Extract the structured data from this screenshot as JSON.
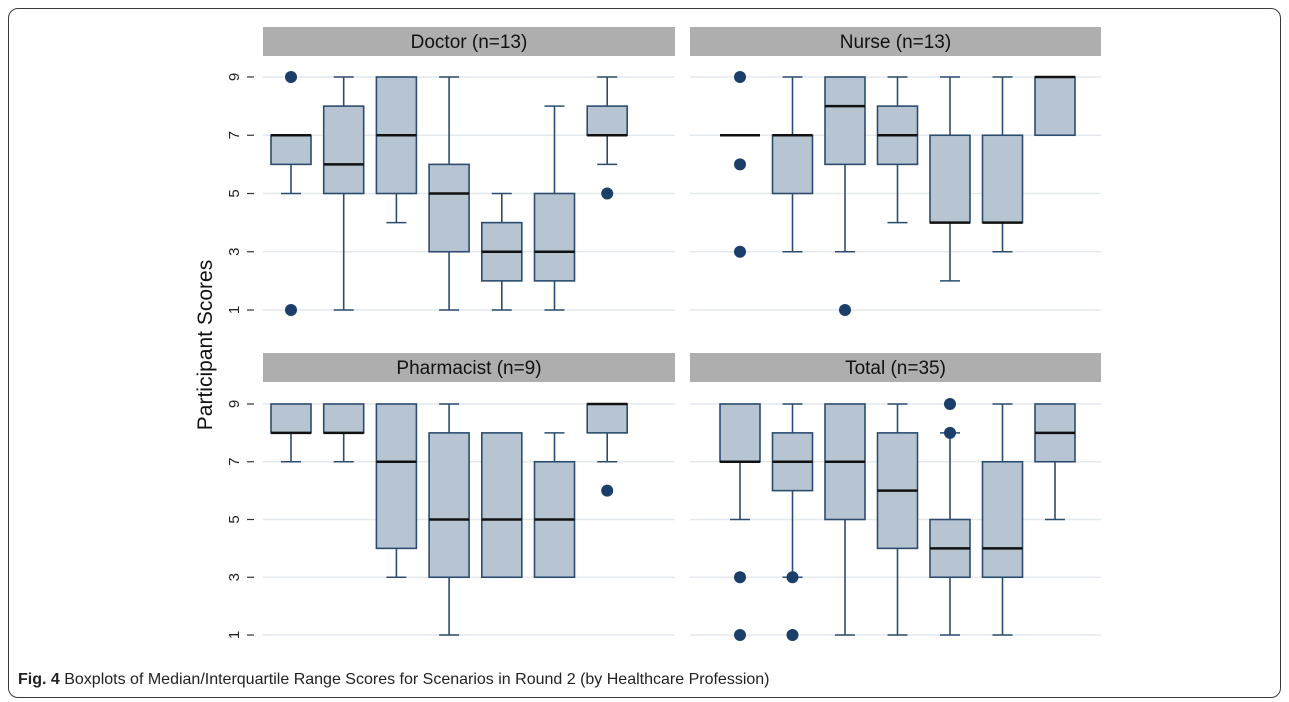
{
  "caption": {
    "label": "Fig. 4",
    "text": "Boxplots of Median/Interquartile Range Scores for Scenarios in Round 2 (by Healthcare Profession)"
  },
  "colors": {
    "box_fill": "#b7c5d3",
    "box_stroke": "#2c4c6f",
    "median": "#111111",
    "outlier": "#1b3f68",
    "strip": "#aeaeae",
    "grid": "#e4e9ee"
  },
  "chart_data": {
    "type": "boxplot",
    "ylabel": "Participant Scores",
    "ylim": [
      1,
      9
    ],
    "yticks": [
      1,
      3,
      5,
      7,
      9
    ],
    "grid": true,
    "panels": [
      {
        "title": "Doctor (n=13)",
        "boxes": [
          {
            "q1": 6,
            "median": 7,
            "q3": 7,
            "whisker_low": 5,
            "whisker_high": 7,
            "outliers": [
              1,
              9
            ]
          },
          {
            "q1": 5,
            "median": 6,
            "q3": 8,
            "whisker_low": 1,
            "whisker_high": 9,
            "outliers": []
          },
          {
            "q1": 5,
            "median": 7,
            "q3": 9,
            "whisker_low": 4,
            "whisker_high": 9,
            "outliers": []
          },
          {
            "q1": 3,
            "median": 5,
            "q3": 6,
            "whisker_low": 1,
            "whisker_high": 9,
            "outliers": []
          },
          {
            "q1": 2,
            "median": 3,
            "q3": 4,
            "whisker_low": 1,
            "whisker_high": 5,
            "outliers": []
          },
          {
            "q1": 2,
            "median": 3,
            "q3": 5,
            "whisker_low": 1,
            "whisker_high": 8,
            "outliers": []
          },
          {
            "q1": 7,
            "median": 7,
            "q3": 8,
            "whisker_low": 6,
            "whisker_high": 9,
            "outliers": [
              5
            ]
          }
        ]
      },
      {
        "title": "Nurse (n=13)",
        "boxes": [
          {
            "q1": 7,
            "median": 7,
            "q3": 7,
            "whisker_low": 7,
            "whisker_high": 7,
            "outliers": [
              3,
              6,
              9
            ]
          },
          {
            "q1": 5,
            "median": 7,
            "q3": 7,
            "whisker_low": 3,
            "whisker_high": 9,
            "outliers": []
          },
          {
            "q1": 6,
            "median": 8,
            "q3": 9,
            "whisker_low": 3,
            "whisker_high": 9,
            "outliers": [
              1
            ]
          },
          {
            "q1": 6,
            "median": 7,
            "q3": 8,
            "whisker_low": 4,
            "whisker_high": 9,
            "outliers": []
          },
          {
            "q1": 4,
            "median": 4,
            "q3": 7,
            "whisker_low": 2,
            "whisker_high": 9,
            "outliers": []
          },
          {
            "q1": 4,
            "median": 4,
            "q3": 7,
            "whisker_low": 3,
            "whisker_high": 9,
            "outliers": []
          },
          {
            "q1": 7,
            "median": 9,
            "q3": 9,
            "whisker_low": 7,
            "whisker_high": 9,
            "outliers": []
          }
        ]
      },
      {
        "title": "Pharmacist (n=9)",
        "boxes": [
          {
            "q1": 8,
            "median": 8,
            "q3": 9,
            "whisker_low": 7,
            "whisker_high": 9,
            "outliers": []
          },
          {
            "q1": 8,
            "median": 8,
            "q3": 9,
            "whisker_low": 7,
            "whisker_high": 9,
            "outliers": []
          },
          {
            "q1": 4,
            "median": 7,
            "q3": 9,
            "whisker_low": 3,
            "whisker_high": 9,
            "outliers": []
          },
          {
            "q1": 3,
            "median": 5,
            "q3": 8,
            "whisker_low": 1,
            "whisker_high": 9,
            "outliers": []
          },
          {
            "q1": 3,
            "median": 5,
            "q3": 8,
            "whisker_low": 3,
            "whisker_high": 8,
            "outliers": []
          },
          {
            "q1": 3,
            "median": 5,
            "q3": 7,
            "whisker_low": 3,
            "whisker_high": 8,
            "outliers": []
          },
          {
            "q1": 8,
            "median": 9,
            "q3": 9,
            "whisker_low": 7,
            "whisker_high": 9,
            "outliers": [
              6
            ]
          }
        ]
      },
      {
        "title": "Total (n=35)",
        "boxes": [
          {
            "q1": 7,
            "median": 7,
            "q3": 9,
            "whisker_low": 5,
            "whisker_high": 9,
            "outliers": [
              1,
              3
            ]
          },
          {
            "q1": 6,
            "median": 7,
            "q3": 8,
            "whisker_low": 3,
            "whisker_high": 9,
            "outliers": [
              1,
              3
            ]
          },
          {
            "q1": 5,
            "median": 7,
            "q3": 9,
            "whisker_low": 1,
            "whisker_high": 9,
            "outliers": []
          },
          {
            "q1": 4,
            "median": 6,
            "q3": 8,
            "whisker_low": 1,
            "whisker_high": 9,
            "outliers": []
          },
          {
            "q1": 3,
            "median": 4,
            "q3": 5,
            "whisker_low": 1,
            "whisker_high": 8,
            "outliers": [
              8,
              9
            ]
          },
          {
            "q1": 3,
            "median": 4,
            "q3": 7,
            "whisker_low": 1,
            "whisker_high": 9,
            "outliers": []
          },
          {
            "q1": 7,
            "median": 8,
            "q3": 9,
            "whisker_low": 5,
            "whisker_high": 9,
            "outliers": []
          }
        ]
      }
    ]
  }
}
